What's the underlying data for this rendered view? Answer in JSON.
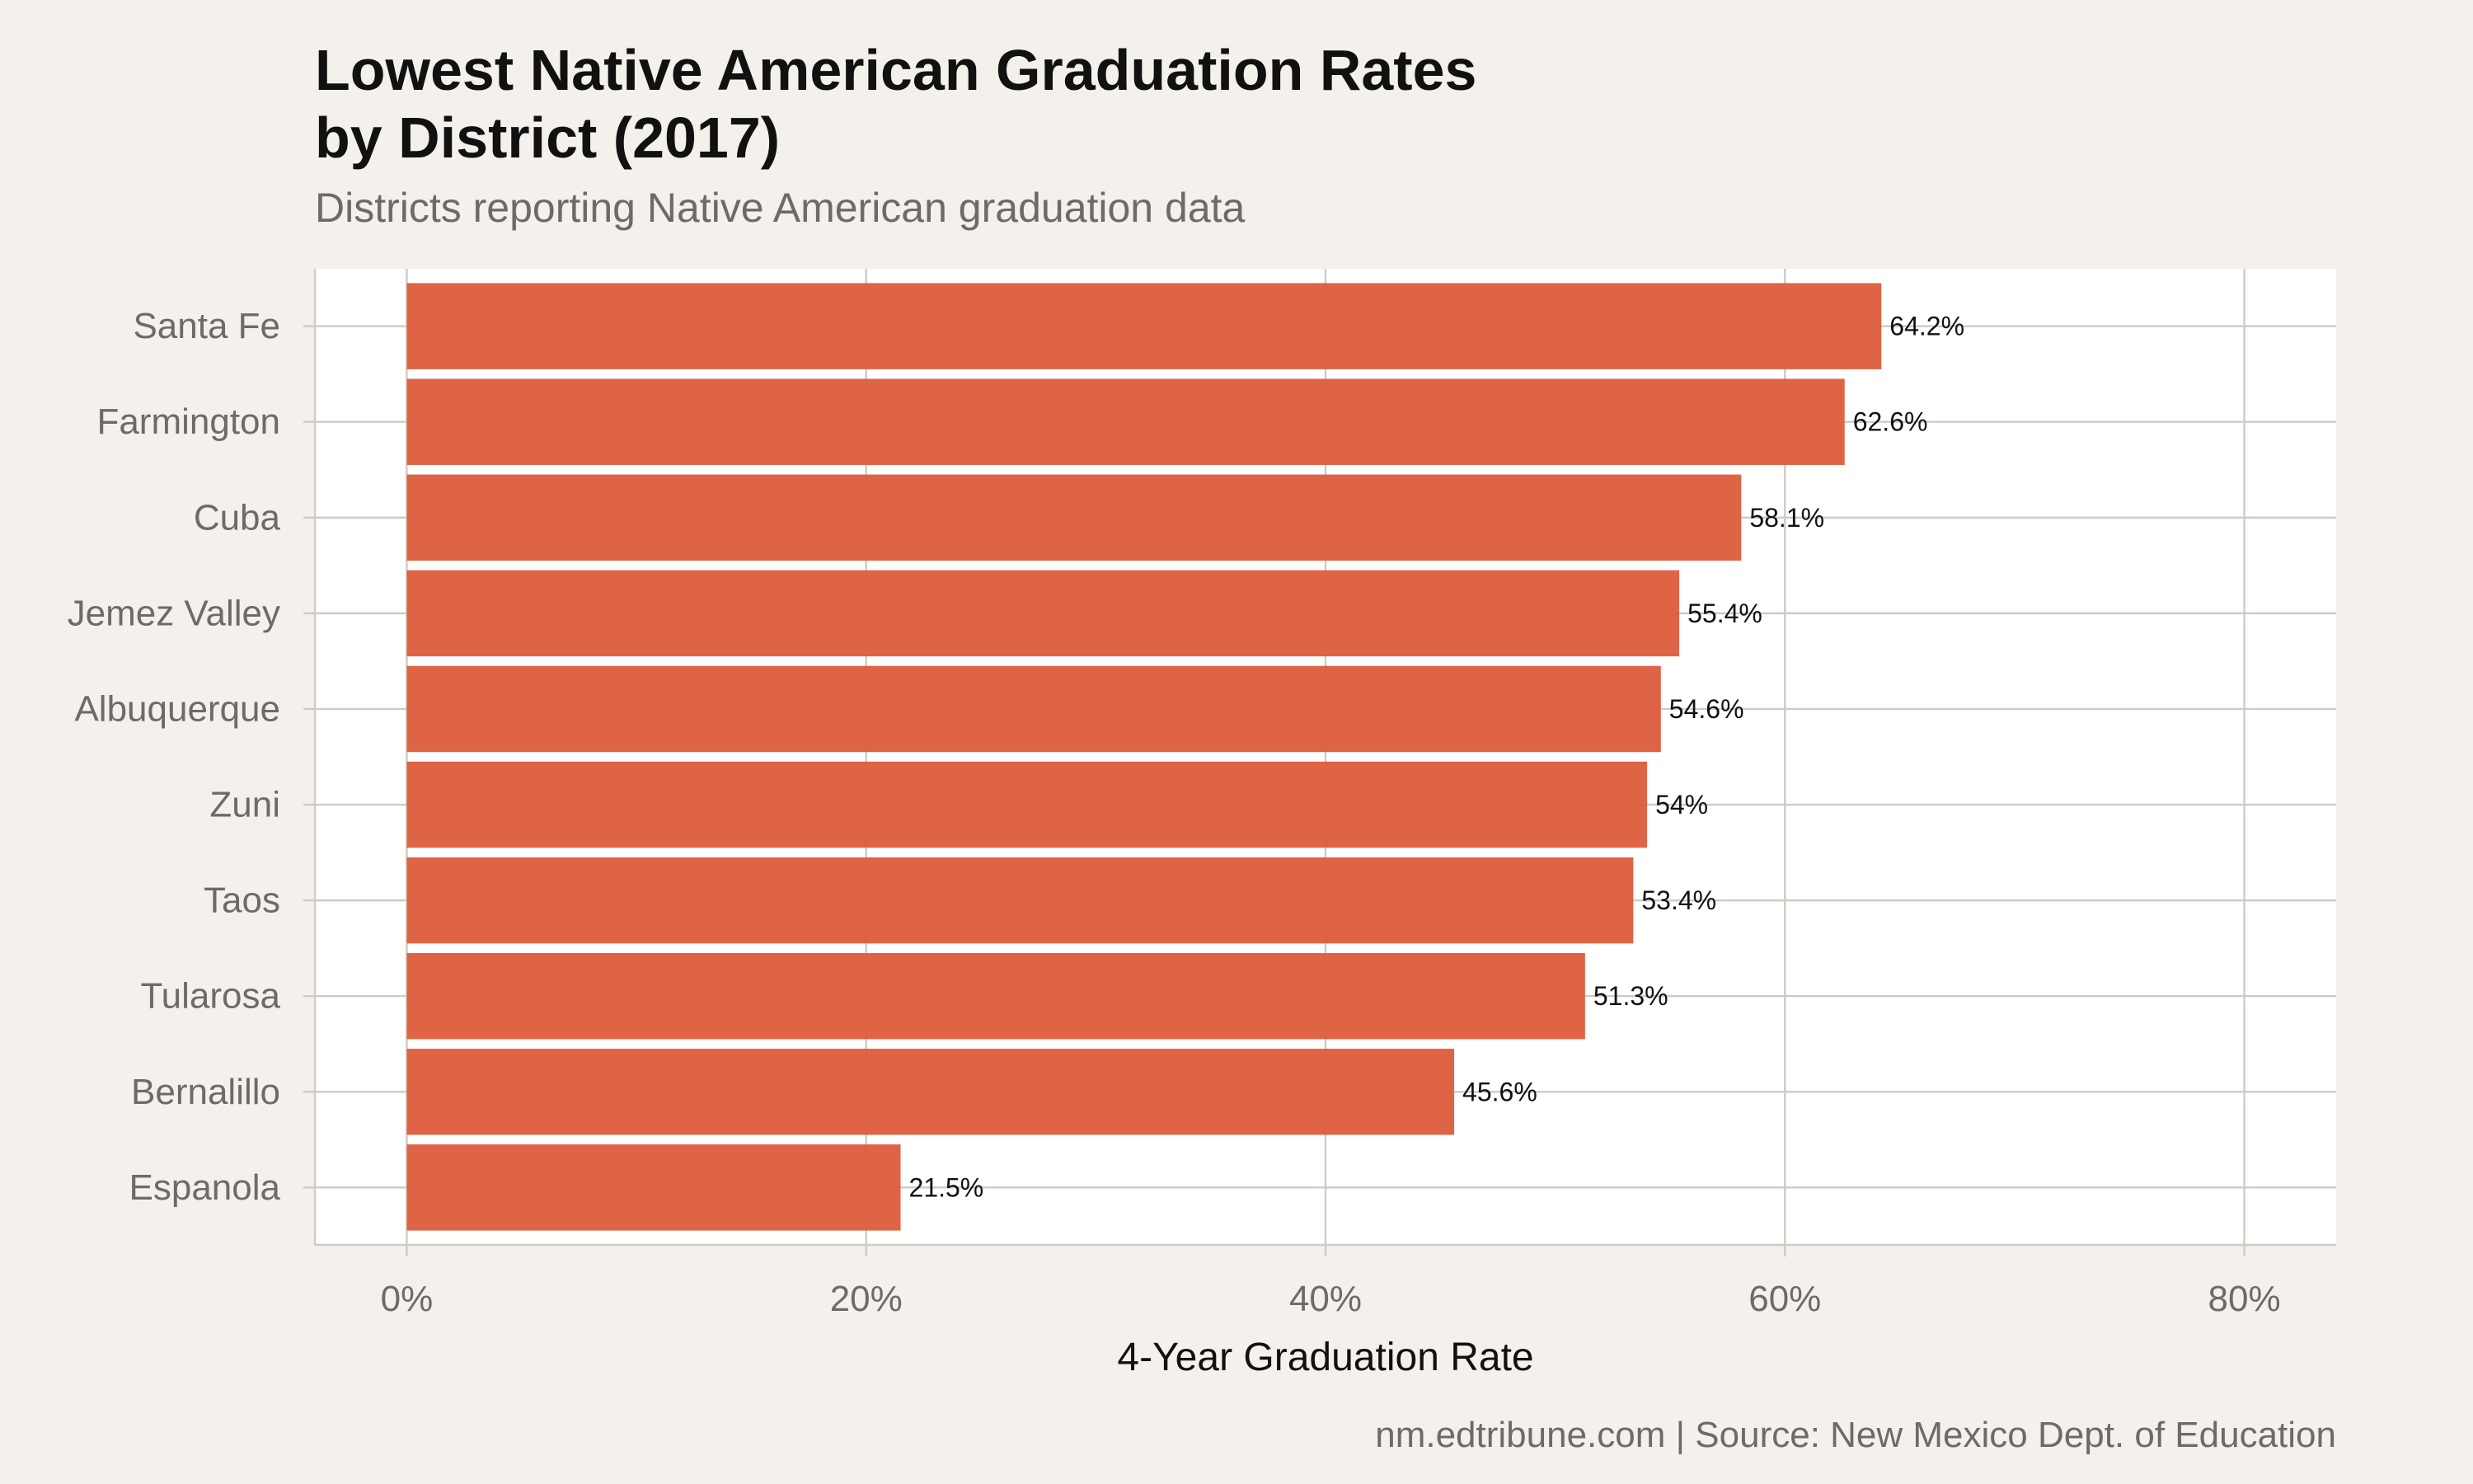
{
  "title_line1": "Lowest Native American Graduation Rates",
  "title_line2": "by District (2017)",
  "subtitle": "Districts reporting Native American graduation data",
  "caption": "nm.edtribune.com | Source: New Mexico Dept. of Education",
  "colors": {
    "bar": "#dd5c3c",
    "panel": "#ffffff",
    "background": "#f4f1ec",
    "grid": "#cfcbc4"
  },
  "chart_data": {
    "type": "bar",
    "orientation": "horizontal",
    "categories": [
      "Santa Fe",
      "Farmington",
      "Cuba",
      "Jemez Valley",
      "Albuquerque",
      "Zuni",
      "Taos",
      "Tularosa",
      "Bernalillo",
      "Espanola"
    ],
    "values": [
      64.2,
      62.6,
      58.1,
      55.4,
      54.6,
      54.0,
      53.4,
      51.3,
      45.6,
      21.5
    ],
    "data_labels": [
      "64.2%",
      "62.6%",
      "58.1%",
      "55.4%",
      "54.6%",
      "54%",
      "53.4%",
      "51.3%",
      "45.6%",
      "21.5%"
    ],
    "xlabel": "4-Year Graduation Rate",
    "ylabel": "",
    "xlim": [
      -4,
      84
    ],
    "x_ticks": [
      0,
      20,
      40,
      60,
      80
    ],
    "x_tick_labels": [
      "0%",
      "20%",
      "40%",
      "60%",
      "80%"
    ],
    "grid": true
  }
}
